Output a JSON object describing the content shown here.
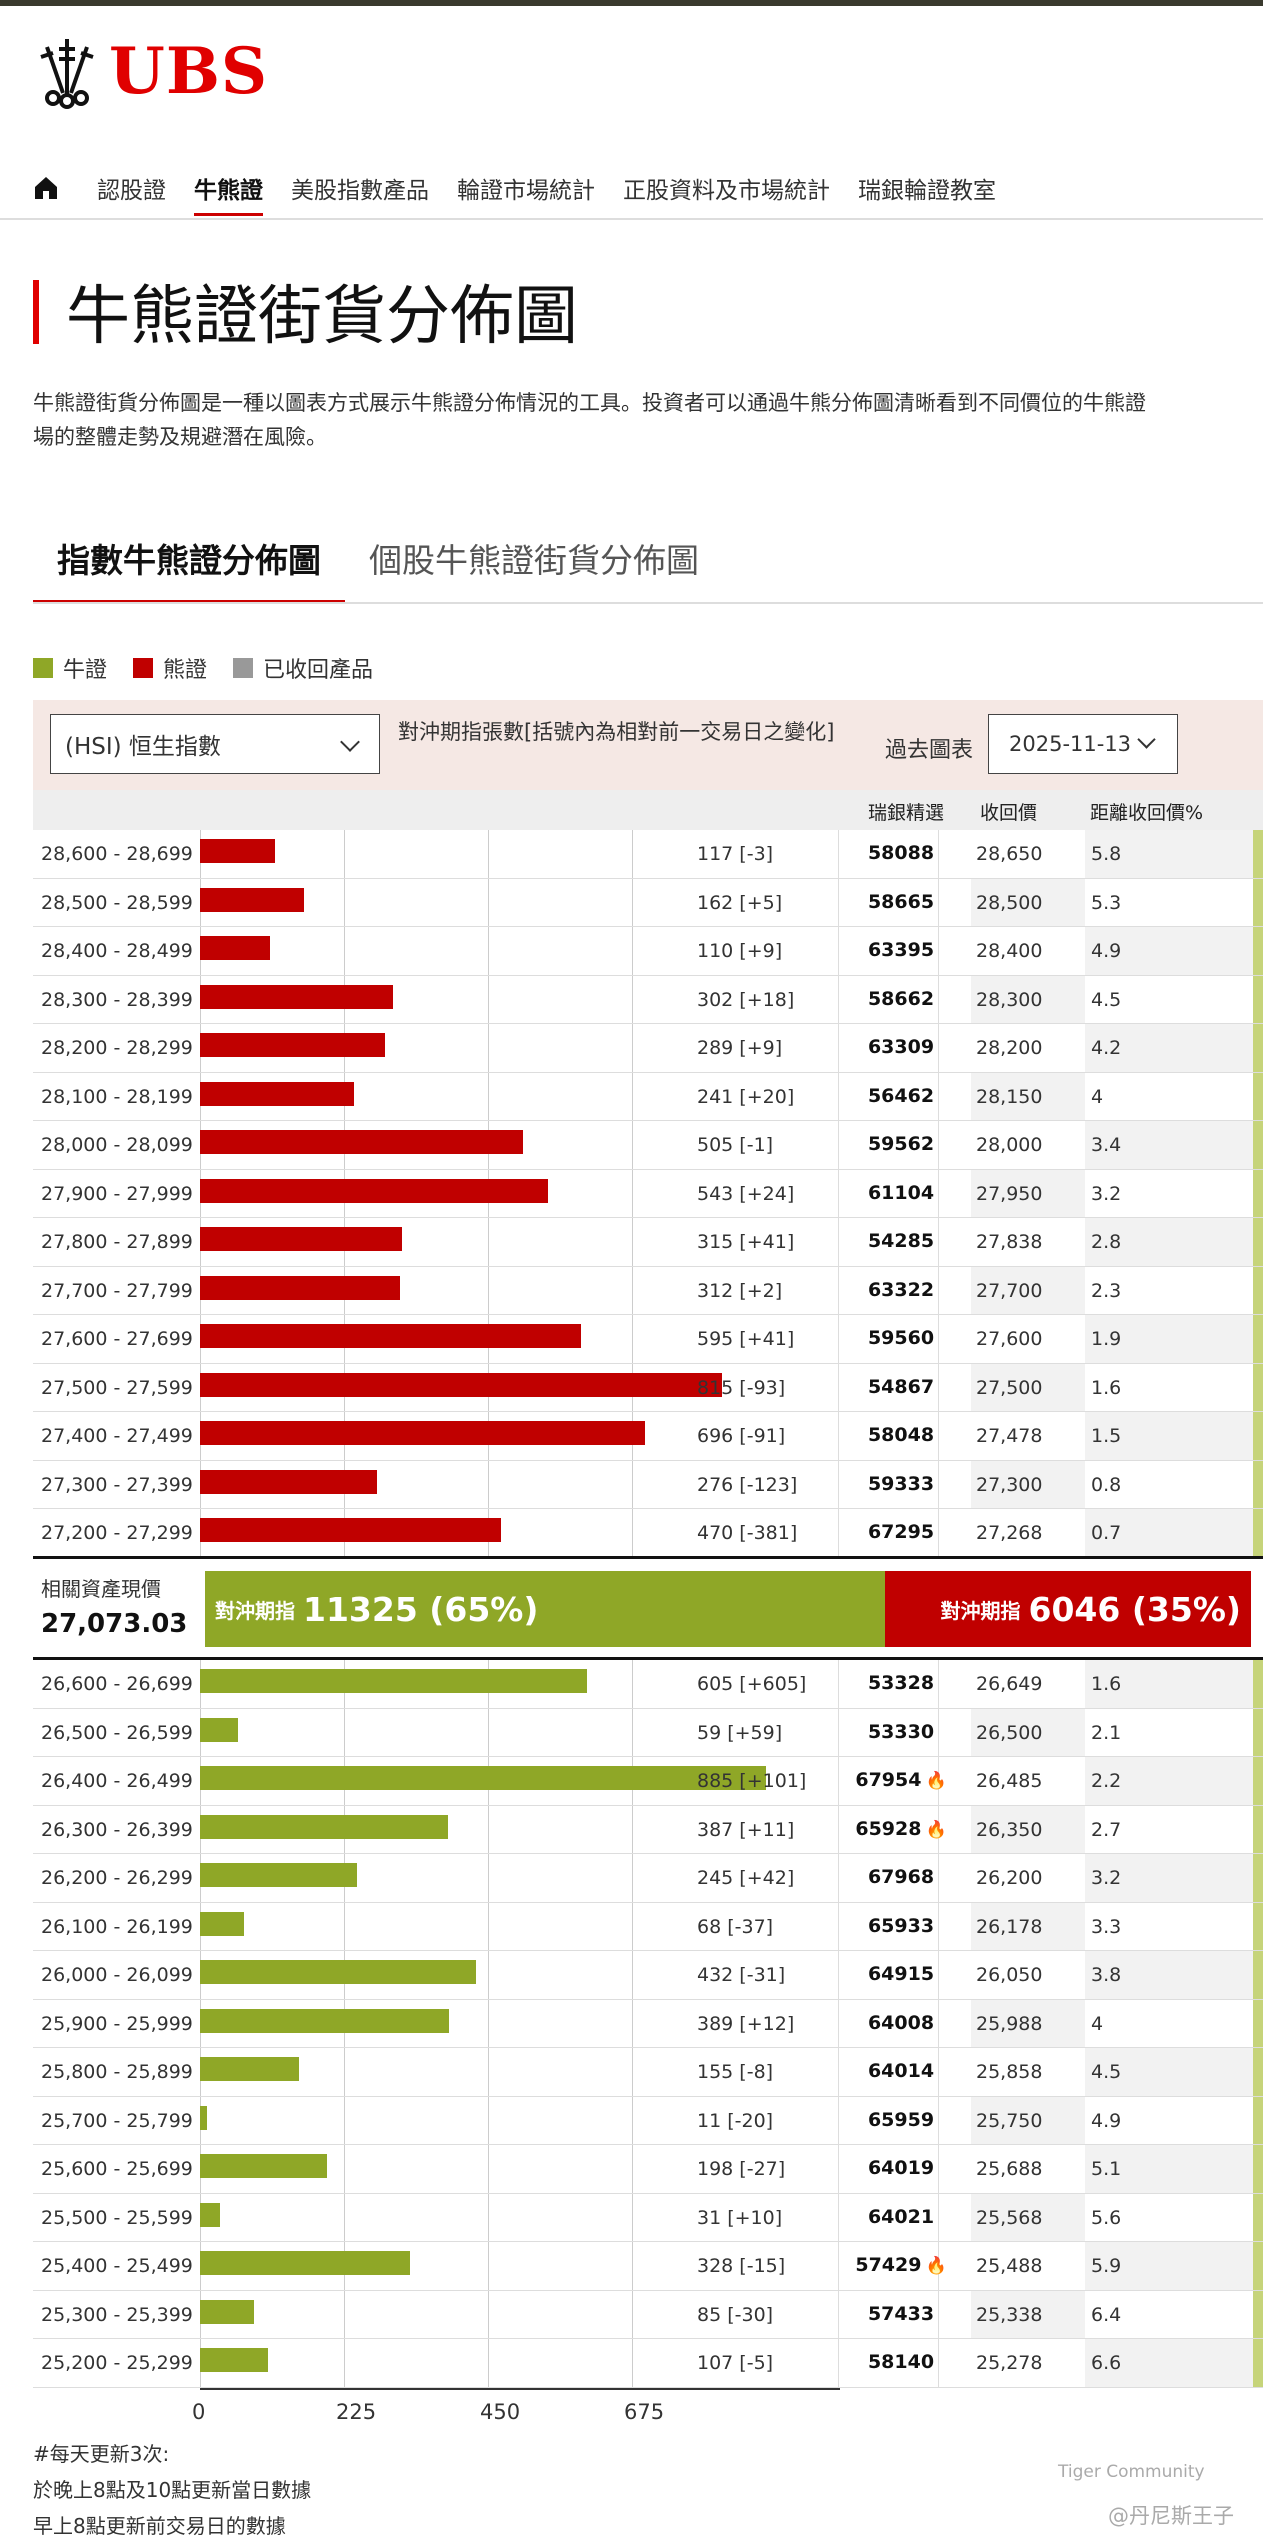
{
  "brand": {
    "name": "UBS",
    "color": "#e00000"
  },
  "nav": {
    "items": [
      "認股證",
      "牛熊證",
      "美股指數產品",
      "輪證市場統計",
      "正股資料及市場統計",
      "瑞銀輪證教室"
    ],
    "active_index": 1
  },
  "page": {
    "title": "牛熊證街貨分佈圖",
    "description": "牛熊證街貨分佈圖是一種以圖表方式展示牛熊證分佈情況的工具。投資者可以通過牛熊分佈圖清晰看到不同價位的牛熊證",
    "description2": "場的整體走勢及規避潛在風險。"
  },
  "tabs": [
    "指數牛熊證分佈圖",
    "個股牛熊證街貨分佈圖"
  ],
  "legend": [
    {
      "label": "牛證",
      "color": "#8fa727"
    },
    {
      "label": "熊證",
      "color": "#c00000"
    },
    {
      "label": "已收回產品",
      "color": "#999999"
    }
  ],
  "controls": {
    "index_select": "(HSI) 恒生指數",
    "hedge_label": "對沖期指張數[括號內為相對前一交易日之變化]",
    "past_label": "過去圖表",
    "date": "2025-11-13"
  },
  "headers": {
    "code": "瑞銀精選",
    "call": "收回價",
    "dist": "距離收回價%"
  },
  "chart_data": {
    "type": "bar",
    "xlim": [
      0,
      1000
    ],
    "xticks": [
      "0",
      "225",
      "450",
      "675"
    ],
    "bear_rows": [
      {
        "range": "28,600 - 28,699",
        "value": 117,
        "label": "117 [-3]",
        "code": "58088",
        "call": "28,650",
        "dist": "5.8",
        "hot": false
      },
      {
        "range": "28,500 - 28,599",
        "value": 162,
        "label": "162 [+5]",
        "code": "58665",
        "call": "28,500",
        "dist": "5.3",
        "hot": false
      },
      {
        "range": "28,400 - 28,499",
        "value": 110,
        "label": "110 [+9]",
        "code": "63395",
        "call": "28,400",
        "dist": "4.9",
        "hot": false
      },
      {
        "range": "28,300 - 28,399",
        "value": 302,
        "label": "302 [+18]",
        "code": "58662",
        "call": "28,300",
        "dist": "4.5",
        "hot": false
      },
      {
        "range": "28,200 - 28,299",
        "value": 289,
        "label": "289 [+9]",
        "code": "63309",
        "call": "28,200",
        "dist": "4.2",
        "hot": false
      },
      {
        "range": "28,100 - 28,199",
        "value": 241,
        "label": "241 [+20]",
        "code": "56462",
        "call": "28,150",
        "dist": "4",
        "hot": false
      },
      {
        "range": "28,000 - 28,099",
        "value": 505,
        "label": "505 [-1]",
        "code": "59562",
        "call": "28,000",
        "dist": "3.4",
        "hot": false
      },
      {
        "range": "27,900 - 27,999",
        "value": 543,
        "label": "543 [+24]",
        "code": "61104",
        "call": "27,950",
        "dist": "3.2",
        "hot": false
      },
      {
        "range": "27,800 - 27,899",
        "value": 315,
        "label": "315 [+41]",
        "code": "54285",
        "call": "27,838",
        "dist": "2.8",
        "hot": false
      },
      {
        "range": "27,700 - 27,799",
        "value": 312,
        "label": "312 [+2]",
        "code": "63322",
        "call": "27,700",
        "dist": "2.3",
        "hot": false
      },
      {
        "range": "27,600 - 27,699",
        "value": 595,
        "label": "595 [+41]",
        "code": "59560",
        "call": "27,600",
        "dist": "1.9",
        "hot": false
      },
      {
        "range": "27,500 - 27,599",
        "value": 815,
        "label": "815 [-93]",
        "code": "54867",
        "call": "27,500",
        "dist": "1.6",
        "hot": false
      },
      {
        "range": "27,400 - 27,499",
        "value": 696,
        "label": "696 [-91]",
        "code": "58048",
        "call": "27,478",
        "dist": "1.5",
        "hot": false
      },
      {
        "range": "27,300 - 27,399",
        "value": 276,
        "label": "276 [-123]",
        "code": "59333",
        "call": "27,300",
        "dist": "0.8",
        "hot": false
      },
      {
        "range": "27,200 - 27,299",
        "value": 470,
        "label": "470 [-381]",
        "code": "67295",
        "call": "27,268",
        "dist": "0.7",
        "hot": false
      }
    ],
    "bull_rows": [
      {
        "range": "26,600 - 26,699",
        "value": 605,
        "label": "605 [+605]",
        "code": "53328",
        "call": "26,649",
        "dist": "1.6",
        "hot": false
      },
      {
        "range": "26,500 - 26,599",
        "value": 59,
        "label": "59 [+59]",
        "code": "53330",
        "call": "26,500",
        "dist": "2.1",
        "hot": false
      },
      {
        "range": "26,400 - 26,499",
        "value": 885,
        "label": "885 [+101]",
        "code": "67954",
        "call": "26,485",
        "dist": "2.2",
        "hot": true
      },
      {
        "range": "26,300 - 26,399",
        "value": 387,
        "label": "387 [+11]",
        "code": "65928",
        "call": "26,350",
        "dist": "2.7",
        "hot": true
      },
      {
        "range": "26,200 - 26,299",
        "value": 245,
        "label": "245 [+42]",
        "code": "67968",
        "call": "26,200",
        "dist": "3.2",
        "hot": false
      },
      {
        "range": "26,100 - 26,199",
        "value": 68,
        "label": "68 [-37]",
        "code": "65933",
        "call": "26,178",
        "dist": "3.3",
        "hot": false
      },
      {
        "range": "26,000 - 26,099",
        "value": 432,
        "label": "432 [-31]",
        "code": "64915",
        "call": "26,050",
        "dist": "3.8",
        "hot": false
      },
      {
        "range": "25,900 - 25,999",
        "value": 389,
        "label": "389 [+12]",
        "code": "64008",
        "call": "25,988",
        "dist": "4",
        "hot": false
      },
      {
        "range": "25,800 - 25,899",
        "value": 155,
        "label": "155 [-8]",
        "code": "64014",
        "call": "25,858",
        "dist": "4.5",
        "hot": false
      },
      {
        "range": "25,700 - 25,799",
        "value": 11,
        "label": "11 [-20]",
        "code": "65959",
        "call": "25,750",
        "dist": "4.9",
        "hot": false
      },
      {
        "range": "25,600 - 25,699",
        "value": 198,
        "label": "198 [-27]",
        "code": "64019",
        "call": "25,688",
        "dist": "5.1",
        "hot": false
      },
      {
        "range": "25,500 - 25,599",
        "value": 31,
        "label": "31 [+10]",
        "code": "64021",
        "call": "25,568",
        "dist": "5.6",
        "hot": false
      },
      {
        "range": "25,400 - 25,499",
        "value": 328,
        "label": "328 [-15]",
        "code": "57429",
        "call": "25,488",
        "dist": "5.9",
        "hot": true
      },
      {
        "range": "25,300 - 25,399",
        "value": 85,
        "label": "85 [-30]",
        "code": "57433",
        "call": "25,338",
        "dist": "6.4",
        "hot": false
      },
      {
        "range": "25,200 - 25,299",
        "value": 107,
        "label": "107 [-5]",
        "code": "58140",
        "call": "25,278",
        "dist": "6.6",
        "hot": false
      }
    ]
  },
  "summary": {
    "asset_label": "相關資產現價",
    "asset_value": "27,073.03",
    "bull_prefix": "對沖期指",
    "bull_value": "11325 (65%)",
    "bull_fraction": 0.65,
    "bear_prefix": "對沖期指",
    "bear_value": "6046 (35%)"
  },
  "footer": {
    "lines": [
      "#每天更新3次:",
      "於晚上8點及10點更新當日數據",
      "早上8點更新前交易日的數據"
    ]
  },
  "watermark": {
    "brand": "Tiger Community",
    "user": "@丹尼斯王子"
  }
}
